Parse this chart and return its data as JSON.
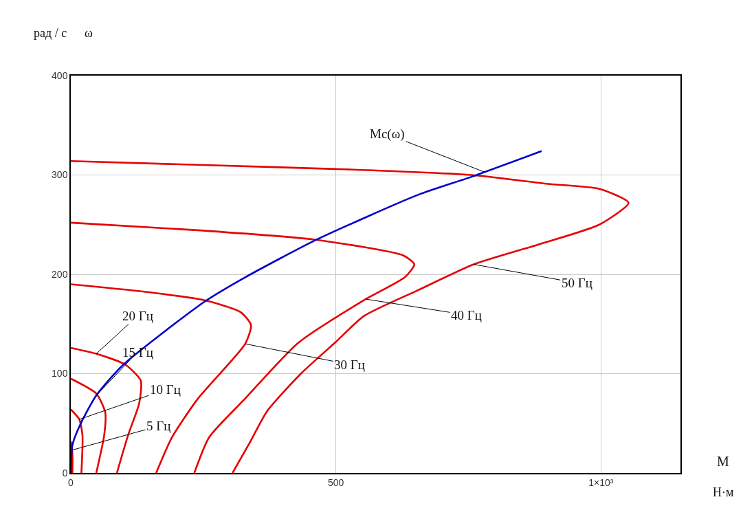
{
  "chart_data": {
    "type": "line",
    "xlabel": "M",
    "ylabel": "ω",
    "xlim": [
      0,
      1150
    ],
    "ylim": [
      0,
      400
    ],
    "xticks": [
      0,
      500,
      {
        "value": 1000,
        "label": "1×10³"
      }
    ],
    "yticks": [
      0,
      100,
      200,
      300,
      400
    ],
    "grid": true,
    "marker": "none",
    "line_style": "solid",
    "series": [
      {
        "color": "#e60000",
        "x": [
          305,
          337,
          370,
          434,
          500,
          553,
          655,
          760,
          882,
          997,
          1052,
          997,
          900,
          755,
          500,
          250,
          0
        ],
        "values": [
          0,
          30,
          62,
          100,
          132,
          158,
          184,
          210,
          230,
          250,
          272,
          286,
          291,
          300,
          306,
          310,
          314
        ]
      },
      {
        "color": "#e60000",
        "x": [
          233,
          261,
          329,
          429,
          553,
          630,
          648,
          627,
          459,
          250,
          0
        ],
        "values": [
          0,
          36,
          75,
          131,
          174,
          197,
          210,
          219,
          235,
          244,
          252
        ]
      },
      {
        "color": "#e60000",
        "x": [
          161,
          191,
          240,
          329,
          340,
          320,
          251,
          130,
          0
        ],
        "values": [
          0,
          36,
          75,
          130,
          149,
          162,
          174,
          183,
          190
        ]
      },
      {
        "color": "#e60000",
        "x": [
          87,
          108,
          129,
          132,
          103,
          48,
          0
        ],
        "values": [
          0,
          38,
          70,
          93,
          109,
          120,
          126
        ]
      },
      {
        "color": "#e60000",
        "x": [
          48,
          63,
          65,
          48,
          0
        ],
        "values": [
          0,
          38,
          61,
          80,
          95
        ]
      },
      {
        "color": "#e60000",
        "x": [
          20,
          22,
          16,
          0
        ],
        "values": [
          0,
          38,
          54,
          64
        ]
      },
      {
        "color": "#e60000",
        "x": [
          3,
          3,
          0
        ],
        "values": [
          0,
          20,
          32
        ]
      },
      {
        "color": "#0000cc",
        "x": [
          0,
          3,
          18,
          48,
          99,
          251,
          329,
          464,
          655,
          755,
          888
        ],
        "values": [
          0,
          28,
          49,
          78,
          109,
          172,
          197,
          235,
          280,
          298,
          324
        ]
      }
    ],
    "annotations": [
      {
        "text": "Mc(ω)",
        "x": 780,
        "y": 303
      },
      {
        "text": "50 Гц",
        "x": 760,
        "y": 210
      },
      {
        "text": "40 Гц",
        "x": 557,
        "y": 175
      },
      {
        "text": "30 Гц",
        "x": 329,
        "y": 130
      },
      {
        "text": "20 Гц",
        "x": 48,
        "y": 120
      },
      {
        "text": "15 Гц",
        "x": 48,
        "y": 78
      },
      {
        "text": "10 Гц",
        "x": 16,
        "y": 54
      },
      {
        "text": "5 Гц",
        "x": 2,
        "y": 23
      },
      "рад / с",
      "Н·м"
    ]
  }
}
